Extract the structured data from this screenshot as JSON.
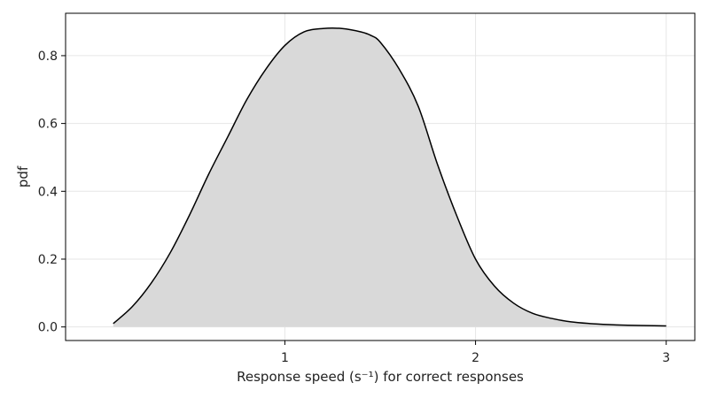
{
  "chart_data": {
    "type": "area",
    "title": "",
    "xlabel": "Response speed (s⁻¹) for correct responses",
    "ylabel": "pdf",
    "xlim": [
      -0.15,
      3.15
    ],
    "ylim": [
      -0.04,
      0.925
    ],
    "xticks": [
      1,
      2,
      3
    ],
    "xtick_labels": [
      "1",
      "2",
      "3"
    ],
    "yticks": [
      0.0,
      0.2,
      0.4,
      0.6,
      0.8
    ],
    "ytick_labels": [
      "0.0",
      "0.2",
      "0.4",
      "0.6",
      "0.8"
    ],
    "grid": true,
    "legend": "none",
    "colors": {
      "fill": "#d9d9d9",
      "line": "#000000",
      "grid": "#e6e6e6",
      "frame": "#000000"
    },
    "series": [
      {
        "x": [
          0.1,
          0.2,
          0.3,
          0.4,
          0.5,
          0.6,
          0.7,
          0.8,
          0.9,
          1.0,
          1.1,
          1.2,
          1.3,
          1.4,
          1.45,
          1.5,
          1.6,
          1.7,
          1.8,
          1.9,
          2.0,
          2.1,
          2.2,
          2.3,
          2.4,
          2.5,
          2.6,
          2.7,
          2.8,
          2.9,
          3.0
        ],
        "y": [
          0.01,
          0.06,
          0.13,
          0.22,
          0.33,
          0.45,
          0.56,
          0.67,
          0.76,
          0.83,
          0.87,
          0.88,
          0.88,
          0.87,
          0.86,
          0.84,
          0.76,
          0.65,
          0.48,
          0.33,
          0.2,
          0.12,
          0.07,
          0.04,
          0.025,
          0.015,
          0.01,
          0.007,
          0.005,
          0.004,
          0.003
        ]
      }
    ]
  }
}
